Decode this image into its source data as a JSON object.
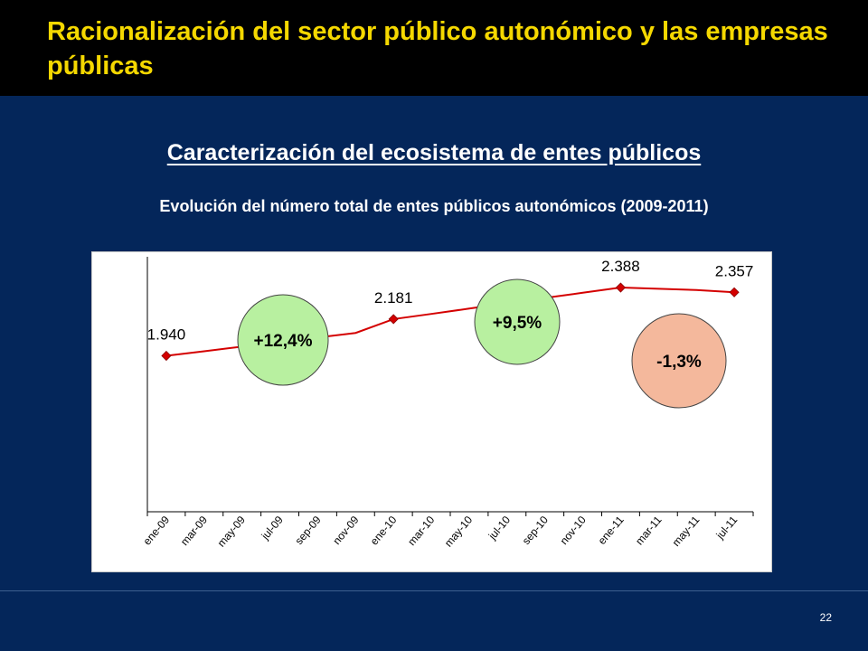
{
  "slide": {
    "title": "Racionalización del sector público autonómico y las empresas públicas",
    "section_heading": "Caracterización del ecosistema de entes públicos",
    "chart_subtitle": "Evolución del número total de entes públicos autonómicos (2009-2011)",
    "page_number": "22"
  },
  "colors": {
    "title": "#f5d800",
    "background": "#04265a",
    "line": "#d40000",
    "growth_bubble": "#b8f0a0",
    "decline_bubble": "#f4b89c"
  },
  "chart_data": {
    "type": "line",
    "title": "Evolución del número total de entes públicos autonómicos (2009-2011)",
    "categories": [
      "ene-09",
      "mar-09",
      "may-09",
      "jul-09",
      "sep-09",
      "nov-09",
      "ene-10",
      "mar-10",
      "may-10",
      "jul-10",
      "sep-10",
      "nov-10",
      "ene-11",
      "mar-11",
      "may-11",
      "jul-11"
    ],
    "series": [
      {
        "values": [
          1940,
          1970,
          2000,
          2030,
          2060,
          2090,
          2181,
          2215,
          2250,
          2285,
          2320,
          2354,
          2388,
          2380,
          2372,
          2357
        ],
        "labeled_points": [
          {
            "category": "ene-09",
            "value": 1940,
            "label": "1.940"
          },
          {
            "category": "ene-10",
            "value": 2181,
            "label": "2.181"
          },
          {
            "category": "ene-11",
            "value": 2388,
            "label": "2.388"
          },
          {
            "category": "jul-11",
            "value": 2357,
            "label": "2.357"
          }
        ]
      }
    ],
    "annotations": [
      {
        "text": "+12,4%",
        "between": [
          "ene-09",
          "ene-10"
        ],
        "kind": "increase"
      },
      {
        "text": "+9,5%",
        "between": [
          "ene-10",
          "ene-11"
        ],
        "kind": "increase"
      },
      {
        "text": "-1,3%",
        "between": [
          "ene-11",
          "jul-11"
        ],
        "kind": "decrease"
      }
    ],
    "y_range": [
      0,
      2700
    ],
    "grid": false,
    "legend": "none"
  }
}
